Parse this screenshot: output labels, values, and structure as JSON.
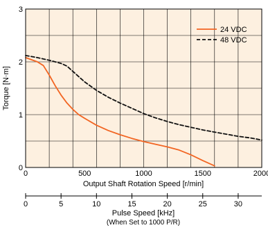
{
  "chart_data": {
    "type": "line",
    "title": "",
    "ylabel": "Torque [N·m]",
    "xlabel": "Output Shaft Rotation Speed [r/min]",
    "xlim": [
      0,
      2000
    ],
    "ylim": [
      0,
      3
    ],
    "x_ticks": [
      "0",
      "500",
      "1000",
      "1500",
      "2000"
    ],
    "y_ticks": [
      "0",
      "1",
      "2",
      "3"
    ],
    "grid": true,
    "legend_position": "top-right",
    "series": [
      {
        "name": "24 VDC",
        "color": "#f26522",
        "style": "solid",
        "x": [
          0,
          100,
          150,
          200,
          250,
          300,
          350,
          400,
          450,
          500,
          600,
          700,
          800,
          900,
          1000,
          1100,
          1200,
          1300,
          1400,
          1500,
          1600
        ],
        "y": [
          2.08,
          2.0,
          1.93,
          1.75,
          1.55,
          1.37,
          1.22,
          1.1,
          1.0,
          0.93,
          0.8,
          0.7,
          0.62,
          0.55,
          0.49,
          0.44,
          0.39,
          0.33,
          0.24,
          0.13,
          0.03
        ]
      },
      {
        "name": "48 VDC",
        "color": "#111111",
        "style": "dashed",
        "x": [
          0,
          100,
          200,
          300,
          350,
          400,
          450,
          500,
          600,
          700,
          800,
          900,
          1000,
          1100,
          1200,
          1300,
          1400,
          1500,
          1600,
          1700,
          1800,
          1900,
          2000
        ],
        "y": [
          2.12,
          2.08,
          2.03,
          1.97,
          1.92,
          1.82,
          1.72,
          1.62,
          1.46,
          1.33,
          1.22,
          1.12,
          1.02,
          0.94,
          0.87,
          0.81,
          0.76,
          0.71,
          0.67,
          0.63,
          0.59,
          0.56,
          0.52
        ]
      }
    ],
    "secondary_x_axis": {
      "label": "Pulse Speed [kHz]",
      "note": "(When Set to 1000 P/R)",
      "ticks": [
        0,
        5,
        10,
        15,
        20,
        25,
        30
      ],
      "max": 33.33
    },
    "plot_background": "#fdf0e0"
  }
}
